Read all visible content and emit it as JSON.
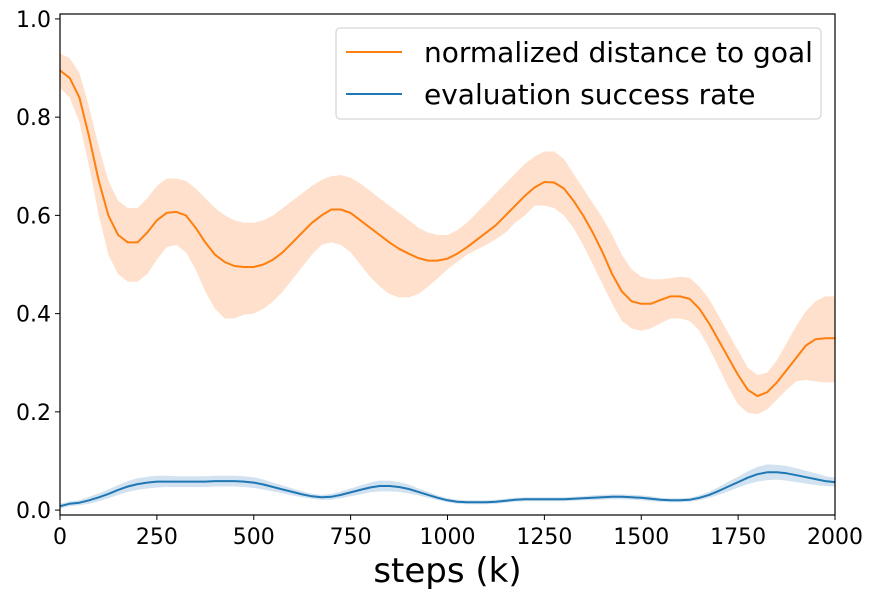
{
  "chart_data": {
    "type": "line",
    "xlabel": "steps (k)",
    "ylabel": "",
    "xlim": [
      0,
      2000
    ],
    "ylim": [
      -0.01,
      1.01
    ],
    "xticks": [
      0,
      250,
      500,
      750,
      1000,
      1250,
      1500,
      1750,
      2000
    ],
    "xtick_labels": [
      "0",
      "250",
      "500",
      "750",
      "1000",
      "1250",
      "1500",
      "1750",
      "2000"
    ],
    "yticks": [
      0.0,
      0.2,
      0.4,
      0.6,
      0.8,
      1.0
    ],
    "ytick_labels": [
      "0.0",
      "0.2",
      "0.4",
      "0.6",
      "0.8",
      "1.0"
    ],
    "grid": false,
    "legend_position": "top-right",
    "series": [
      {
        "name": "normalized distance to goal",
        "color": "#ff7f0e",
        "band_color": "#ffe0cc",
        "x": [
          0,
          25,
          50,
          75,
          100,
          125,
          150,
          175,
          200,
          225,
          250,
          275,
          300,
          325,
          350,
          375,
          400,
          425,
          450,
          475,
          500,
          525,
          550,
          575,
          600,
          625,
          650,
          675,
          700,
          725,
          750,
          775,
          800,
          825,
          850,
          875,
          900,
          925,
          950,
          975,
          1000,
          1025,
          1050,
          1075,
          1100,
          1125,
          1150,
          1175,
          1200,
          1225,
          1250,
          1275,
          1300,
          1325,
          1350,
          1375,
          1400,
          1425,
          1450,
          1475,
          1500,
          1525,
          1550,
          1575,
          1600,
          1625,
          1650,
          1675,
          1700,
          1725,
          1750,
          1775,
          1800,
          1825,
          1850,
          1875,
          1900,
          1925,
          1950,
          1975,
          2000
        ],
        "y": [
          0.895,
          0.88,
          0.84,
          0.76,
          0.67,
          0.6,
          0.56,
          0.545,
          0.545,
          0.565,
          0.59,
          0.605,
          0.607,
          0.6,
          0.575,
          0.545,
          0.52,
          0.505,
          0.497,
          0.495,
          0.495,
          0.5,
          0.51,
          0.525,
          0.545,
          0.565,
          0.585,
          0.6,
          0.612,
          0.612,
          0.605,
          0.59,
          0.575,
          0.56,
          0.545,
          0.532,
          0.522,
          0.513,
          0.508,
          0.508,
          0.512,
          0.522,
          0.535,
          0.55,
          0.565,
          0.58,
          0.6,
          0.62,
          0.64,
          0.657,
          0.668,
          0.667,
          0.655,
          0.63,
          0.6,
          0.565,
          0.525,
          0.48,
          0.445,
          0.425,
          0.42,
          0.42,
          0.428,
          0.435,
          0.435,
          0.43,
          0.41,
          0.38,
          0.345,
          0.31,
          0.275,
          0.245,
          0.232,
          0.24,
          0.26,
          0.285,
          0.31,
          0.335,
          0.348,
          0.35,
          0.35
        ],
        "lower": [
          0.86,
          0.84,
          0.79,
          0.7,
          0.6,
          0.52,
          0.48,
          0.465,
          0.465,
          0.48,
          0.51,
          0.535,
          0.54,
          0.525,
          0.49,
          0.445,
          0.41,
          0.39,
          0.39,
          0.398,
          0.4,
          0.41,
          0.425,
          0.445,
          0.47,
          0.495,
          0.52,
          0.54,
          0.545,
          0.54,
          0.525,
          0.5,
          0.475,
          0.455,
          0.44,
          0.433,
          0.433,
          0.44,
          0.455,
          0.472,
          0.49,
          0.505,
          0.52,
          0.53,
          0.54,
          0.552,
          0.565,
          0.585,
          0.6,
          0.62,
          0.62,
          0.615,
          0.6,
          0.575,
          0.54,
          0.5,
          0.46,
          0.42,
          0.385,
          0.37,
          0.365,
          0.37,
          0.38,
          0.39,
          0.39,
          0.385,
          0.365,
          0.33,
          0.29,
          0.25,
          0.215,
          0.198,
          0.195,
          0.205,
          0.225,
          0.245,
          0.262,
          0.265,
          0.262,
          0.26,
          0.26
        ],
        "upper": [
          0.93,
          0.92,
          0.89,
          0.82,
          0.74,
          0.67,
          0.63,
          0.615,
          0.615,
          0.635,
          0.66,
          0.675,
          0.675,
          0.67,
          0.655,
          0.635,
          0.615,
          0.6,
          0.59,
          0.585,
          0.585,
          0.59,
          0.6,
          0.615,
          0.63,
          0.645,
          0.66,
          0.672,
          0.68,
          0.682,
          0.677,
          0.665,
          0.65,
          0.635,
          0.62,
          0.605,
          0.59,
          0.575,
          0.565,
          0.56,
          0.56,
          0.57,
          0.585,
          0.605,
          0.625,
          0.645,
          0.665,
          0.685,
          0.705,
          0.72,
          0.73,
          0.73,
          0.715,
          0.685,
          0.655,
          0.625,
          0.595,
          0.56,
          0.52,
          0.49,
          0.475,
          0.47,
          0.47,
          0.472,
          0.475,
          0.473,
          0.455,
          0.43,
          0.395,
          0.36,
          0.325,
          0.29,
          0.275,
          0.28,
          0.305,
          0.34,
          0.375,
          0.405,
          0.425,
          0.435,
          0.435
        ]
      },
      {
        "name": "evaluation success rate",
        "color": "#1f77b4",
        "band_color": "#d2e2f0",
        "x": [
          0,
          25,
          50,
          75,
          100,
          125,
          150,
          175,
          200,
          225,
          250,
          275,
          300,
          325,
          350,
          375,
          400,
          425,
          450,
          475,
          500,
          525,
          550,
          575,
          600,
          625,
          650,
          675,
          700,
          725,
          750,
          775,
          800,
          825,
          850,
          875,
          900,
          925,
          950,
          975,
          1000,
          1025,
          1050,
          1075,
          1100,
          1125,
          1150,
          1175,
          1200,
          1225,
          1250,
          1275,
          1300,
          1325,
          1350,
          1375,
          1400,
          1425,
          1450,
          1475,
          1500,
          1525,
          1550,
          1575,
          1600,
          1625,
          1650,
          1675,
          1700,
          1725,
          1750,
          1775,
          1800,
          1825,
          1850,
          1875,
          1900,
          1925,
          1950,
          1975,
          2000
        ],
        "y": [
          0.008,
          0.013,
          0.015,
          0.02,
          0.026,
          0.033,
          0.041,
          0.048,
          0.053,
          0.056,
          0.058,
          0.058,
          0.058,
          0.058,
          0.058,
          0.058,
          0.059,
          0.059,
          0.059,
          0.058,
          0.056,
          0.052,
          0.047,
          0.042,
          0.037,
          0.032,
          0.028,
          0.026,
          0.027,
          0.031,
          0.036,
          0.041,
          0.046,
          0.049,
          0.049,
          0.047,
          0.043,
          0.037,
          0.031,
          0.025,
          0.02,
          0.017,
          0.016,
          0.016,
          0.016,
          0.017,
          0.019,
          0.021,
          0.022,
          0.022,
          0.022,
          0.022,
          0.022,
          0.023,
          0.024,
          0.025,
          0.026,
          0.027,
          0.027,
          0.026,
          0.025,
          0.023,
          0.021,
          0.02,
          0.02,
          0.021,
          0.025,
          0.031,
          0.039,
          0.048,
          0.057,
          0.066,
          0.073,
          0.077,
          0.077,
          0.075,
          0.071,
          0.067,
          0.063,
          0.059,
          0.057
        ],
        "lower": [
          0.003,
          0.008,
          0.01,
          0.013,
          0.018,
          0.024,
          0.031,
          0.037,
          0.041,
          0.044,
          0.046,
          0.047,
          0.047,
          0.047,
          0.047,
          0.047,
          0.048,
          0.048,
          0.048,
          0.047,
          0.045,
          0.042,
          0.038,
          0.034,
          0.03,
          0.026,
          0.023,
          0.021,
          0.021,
          0.024,
          0.028,
          0.032,
          0.036,
          0.038,
          0.038,
          0.037,
          0.034,
          0.03,
          0.025,
          0.02,
          0.016,
          0.013,
          0.012,
          0.012,
          0.012,
          0.013,
          0.015,
          0.017,
          0.018,
          0.018,
          0.018,
          0.018,
          0.018,
          0.019,
          0.02,
          0.02,
          0.021,
          0.022,
          0.022,
          0.021,
          0.02,
          0.018,
          0.017,
          0.016,
          0.016,
          0.017,
          0.02,
          0.025,
          0.031,
          0.038,
          0.046,
          0.053,
          0.058,
          0.061,
          0.062,
          0.06,
          0.057,
          0.054,
          0.051,
          0.049,
          0.048
        ],
        "upper": [
          0.013,
          0.018,
          0.02,
          0.027,
          0.034,
          0.042,
          0.051,
          0.059,
          0.065,
          0.068,
          0.07,
          0.07,
          0.069,
          0.069,
          0.069,
          0.069,
          0.07,
          0.07,
          0.07,
          0.069,
          0.067,
          0.062,
          0.056,
          0.05,
          0.044,
          0.038,
          0.033,
          0.031,
          0.033,
          0.038,
          0.044,
          0.05,
          0.056,
          0.06,
          0.06,
          0.057,
          0.052,
          0.044,
          0.037,
          0.03,
          0.024,
          0.021,
          0.02,
          0.02,
          0.02,
          0.021,
          0.023,
          0.025,
          0.026,
          0.026,
          0.026,
          0.026,
          0.026,
          0.027,
          0.028,
          0.03,
          0.031,
          0.032,
          0.032,
          0.031,
          0.03,
          0.028,
          0.025,
          0.024,
          0.024,
          0.025,
          0.03,
          0.037,
          0.047,
          0.058,
          0.068,
          0.079,
          0.088,
          0.093,
          0.092,
          0.09,
          0.085,
          0.08,
          0.075,
          0.069,
          0.066
        ]
      }
    ]
  }
}
